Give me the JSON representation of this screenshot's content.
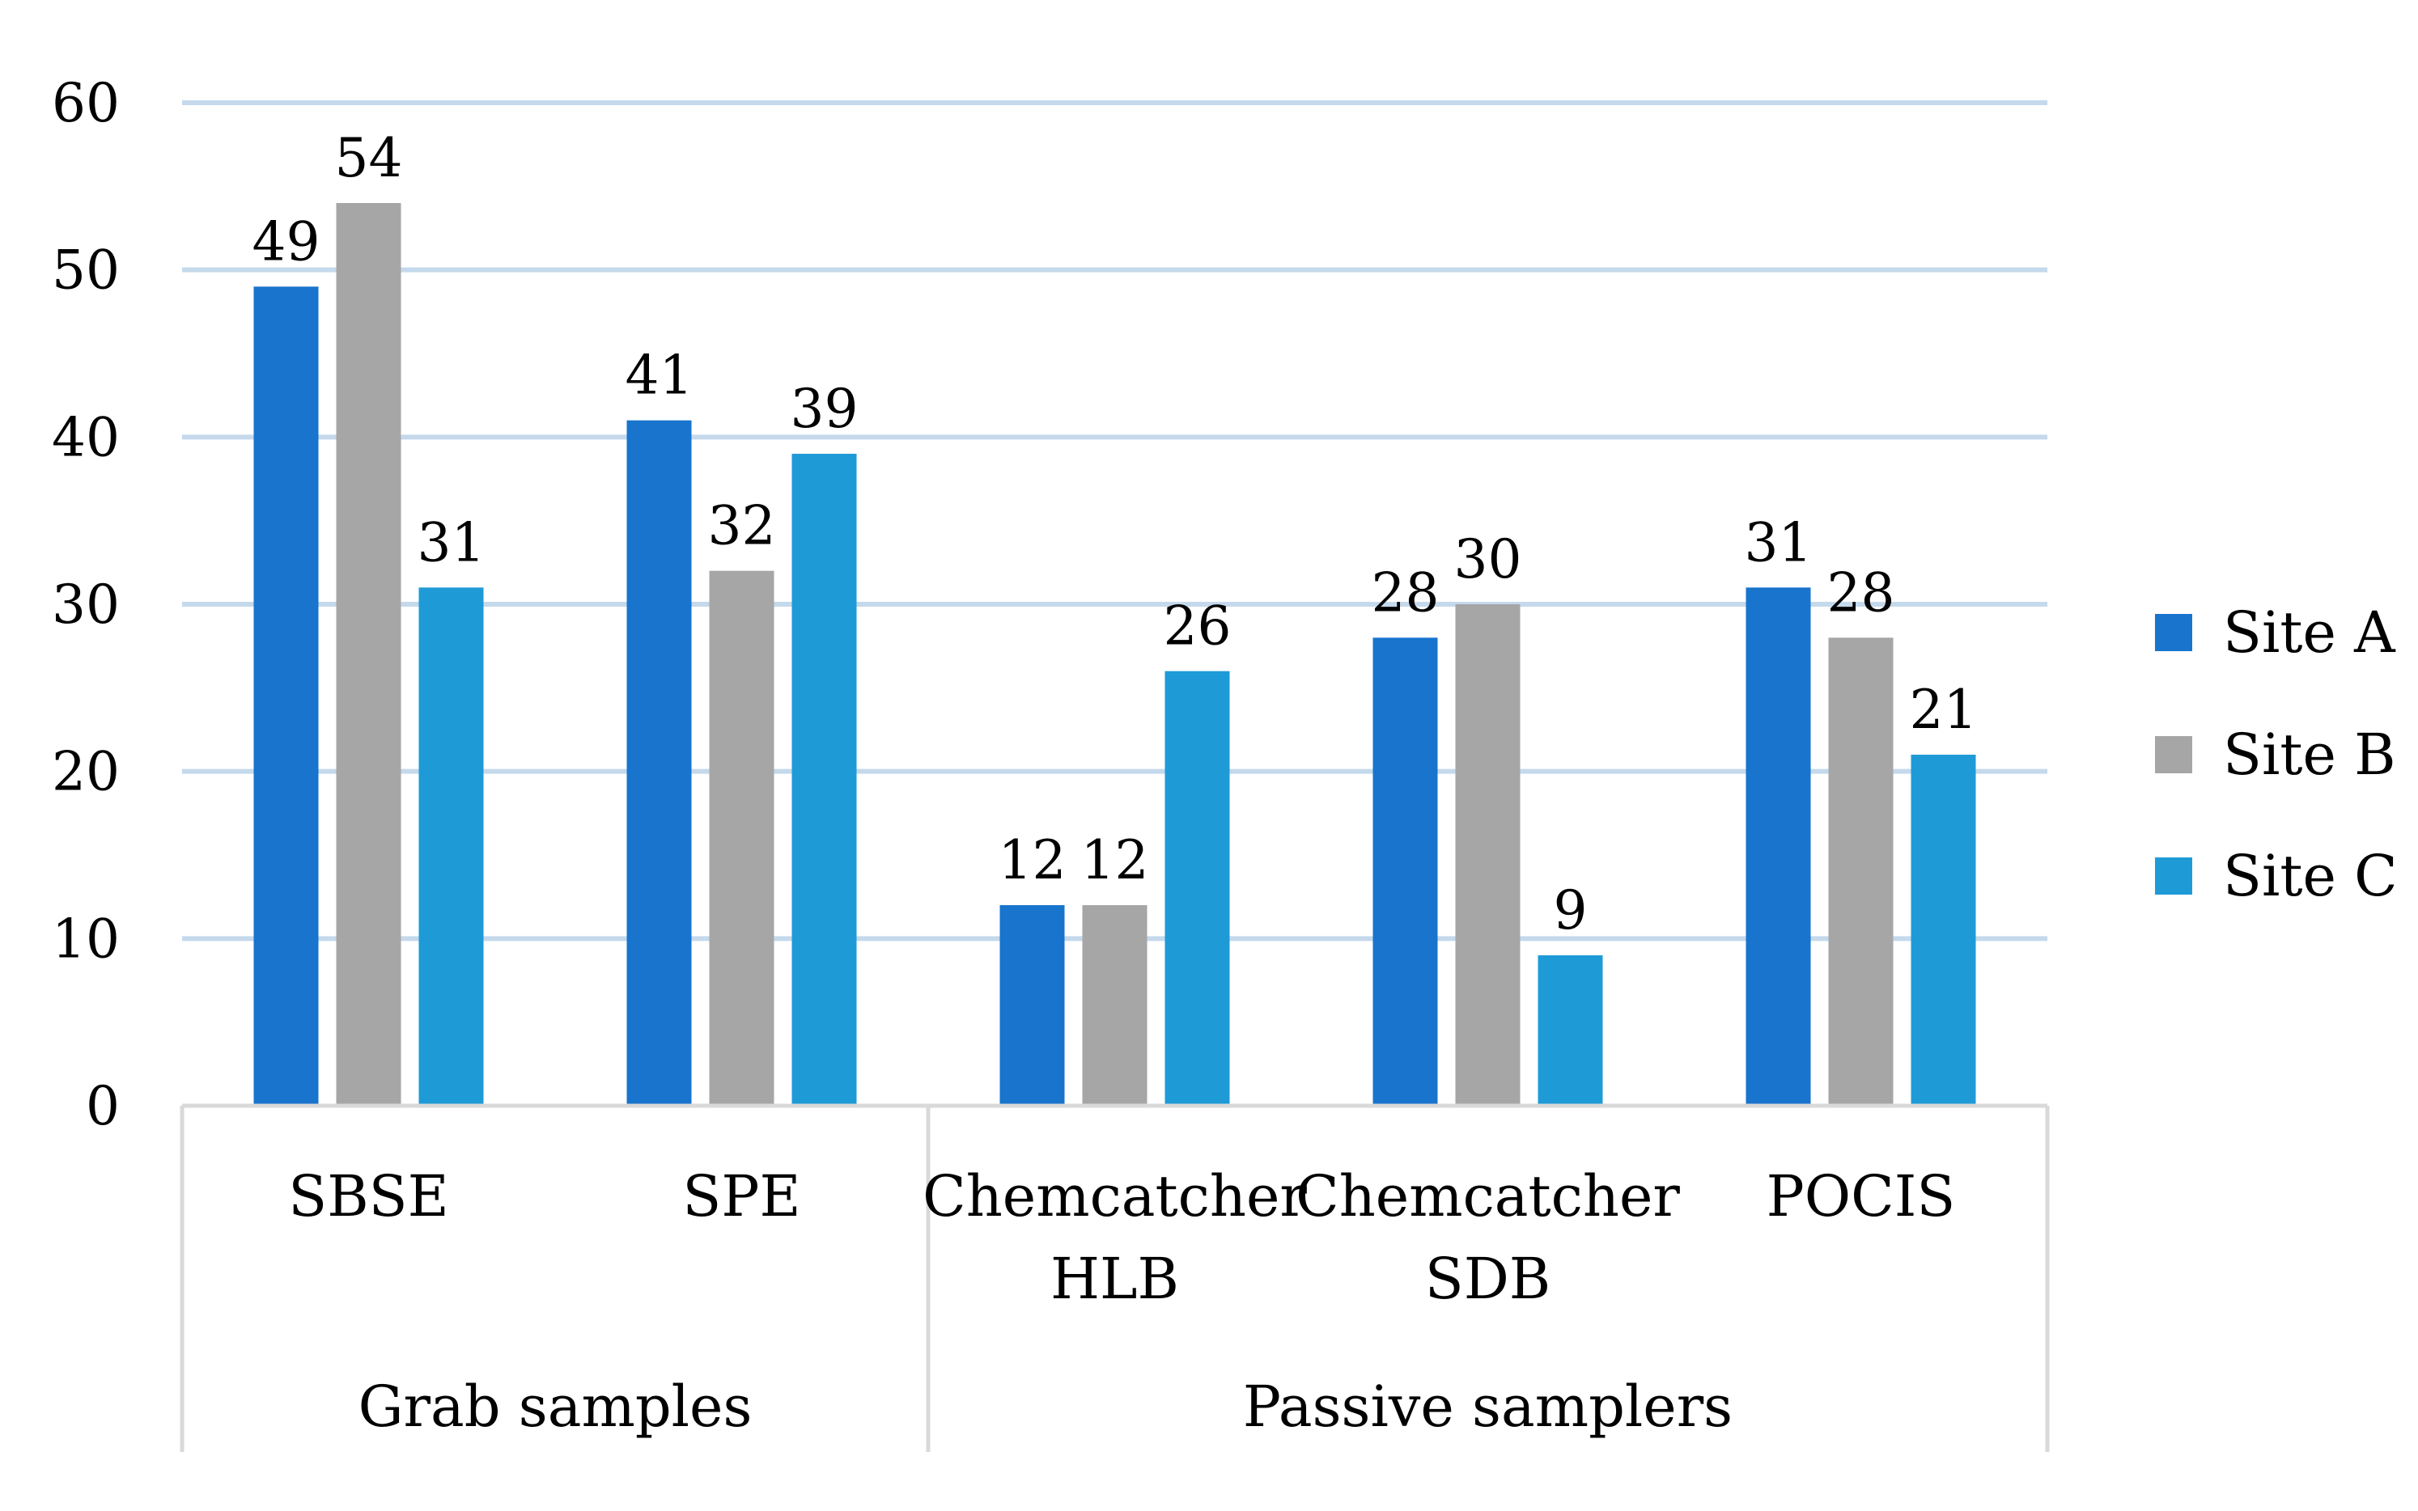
{
  "chart_data": {
    "type": "bar",
    "title": "",
    "xlabel": "",
    "ylabel": "",
    "ylim": [
      0,
      60
    ],
    "yticks": [
      0,
      10,
      20,
      30,
      40,
      50,
      60
    ],
    "grid": true,
    "legend_position": "right",
    "categories": [
      {
        "label": [
          "SBSE"
        ],
        "group": "Grab samples"
      },
      {
        "label": [
          "SPE"
        ],
        "group": "Grab samples"
      },
      {
        "label": [
          "Chemcatcher",
          "HLB"
        ],
        "group": "Passive samplers"
      },
      {
        "label": [
          "Chemcatcher",
          "SDB"
        ],
        "group": "Passive samplers"
      },
      {
        "label": [
          "POCIS"
        ],
        "group": "Passive samplers"
      }
    ],
    "groups": [
      {
        "name": "Grab samples",
        "span": 2
      },
      {
        "name": "Passive samplers",
        "span": 3
      }
    ],
    "series": [
      {
        "name": "Site A",
        "color": "#1874CD",
        "values": [
          49,
          41,
          12,
          28,
          31
        ]
      },
      {
        "name": "Site B",
        "color": "#A6A6A6",
        "values": [
          54,
          32,
          12,
          30,
          28
        ]
      },
      {
        "name": "Site C",
        "color": "#1E9BD7",
        "values": [
          31,
          39,
          26,
          9,
          21
        ]
      }
    ]
  },
  "colors": {
    "grid": "#C5D9EC",
    "axis_frame": "#D9D9D9"
  }
}
